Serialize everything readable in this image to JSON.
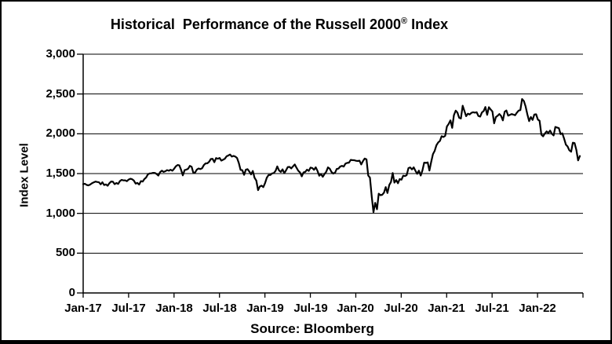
{
  "chart_data": {
    "type": "line",
    "title": "Historical Performance of the Russell 2000® Index",
    "title_main": "Historical  Performance of the Russell 2000",
    "title_registered": "®",
    "title_suffix": " Index",
    "ylabel": "Index Level",
    "source": "Source: Bloomberg",
    "ylim": [
      0,
      3000
    ],
    "y_ticks": [
      3000,
      2500,
      2000,
      1500,
      1000,
      500,
      0
    ],
    "y_ticklabels": [
      "3,000",
      "2,500",
      "2,000",
      "1,500",
      "1,000",
      "500",
      "0"
    ],
    "x_ticklabels": [
      "Jan-17",
      "Jul-17",
      "Jan-18",
      "Jul-18",
      "Jan-19",
      "Jul-19",
      "Jan-20",
      "Jul-20",
      "Jan-21",
      "Jul-21",
      "Jan-22"
    ],
    "x_boundary_ticks": 12,
    "grid": "horizontal",
    "legend": "none",
    "line_color": "#000000",
    "background_color": "#ffffff",
    "series": [
      {
        "name": "Russell 2000 Index",
        "cadence": "weekly",
        "start": "Jan-2017",
        "end": "Jun-2022",
        "values": [
          1368,
          1372,
          1357,
          1352,
          1362,
          1378,
          1389,
          1399,
          1394,
          1390,
          1365,
          1390,
          1356,
          1364,
          1347,
          1379,
          1400,
          1397,
          1367,
          1382,
          1370,
          1405,
          1421,
          1414,
          1415,
          1404,
          1425,
          1435,
          1429,
          1412,
          1374,
          1383,
          1362,
          1405,
          1399,
          1431,
          1450,
          1490,
          1502,
          1503,
          1509,
          1508,
          1494,
          1475,
          1519,
          1537,
          1521,
          1530,
          1543,
          1536,
          1548,
          1536,
          1560,
          1591,
          1608,
          1603,
          1547,
          1477,
          1543,
          1549,
          1560,
          1597,
          1586,
          1510,
          1513,
          1550,
          1564,
          1556,
          1567,
          1607,
          1627,
          1629,
          1648,
          1683,
          1686,
          1643,
          1694,
          1687,
          1696,
          1663,
          1674,
          1686,
          1717,
          1727,
          1740,
          1713,
          1722,
          1713,
          1696,
          1632,
          1546,
          1542,
          1484,
          1548,
          1555,
          1527,
          1489,
          1533,
          1448,
          1411,
          1292,
          1337,
          1348,
          1330,
          1380,
          1447,
          1482,
          1482,
          1502,
          1506,
          1534,
          1590,
          1539,
          1521,
          1553,
          1505,
          1539,
          1582,
          1584,
          1565,
          1591,
          1614,
          1573,
          1535,
          1514,
          1465,
          1514,
          1522,
          1549,
          1534,
          1575,
          1570,
          1547,
          1579,
          1533,
          1473,
          1494,
          1460,
          1495,
          1523,
          1578,
          1560,
          1520,
          1500,
          1511,
          1558,
          1562,
          1589,
          1597,
          1588,
          1625,
          1634,
          1637,
          1672,
          1669,
          1668,
          1661,
          1658,
          1662,
          1614,
          1657,
          1688,
          1679,
          1476,
          1449,
          1210,
          1014,
          1132,
          1052,
          1247,
          1229,
          1234,
          1260,
          1330,
          1256,
          1356,
          1394,
          1507,
          1387,
          1418,
          1379,
          1431,
          1423,
          1473,
          1468,
          1480,
          1569,
          1577,
          1552,
          1578,
          1535,
          1497,
          1537,
          1475,
          1539,
          1637,
          1634,
          1640,
          1538,
          1644,
          1744,
          1785,
          1855,
          1892,
          1911,
          1970,
          1960,
          1975,
          2092,
          2123,
          2168,
          2074,
          2233,
          2290,
          2266,
          2201,
          2192,
          2353,
          2287,
          2221,
          2253,
          2243,
          2263,
          2271,
          2266,
          2271,
          2224,
          2215,
          2268,
          2286,
          2336,
          2238,
          2334,
          2306,
          2280,
          2132,
          2210,
          2226,
          2248,
          2223,
          2168,
          2277,
          2292,
          2228,
          2237,
          2248,
          2241,
          2233,
          2266,
          2291,
          2297,
          2437,
          2411,
          2343,
          2245,
          2159,
          2211,
          2174,
          2242,
          2245,
          2179,
          2163,
          1988,
          1968,
          2002,
          2030,
          2009,
          2040,
          2000,
          1980,
          2086,
          2078,
          2070,
          1995,
          2005,
          1941,
          1864,
          1840,
          1793,
          1774,
          1888,
          1883,
          1800,
          1666,
          1720
        ]
      }
    ]
  }
}
